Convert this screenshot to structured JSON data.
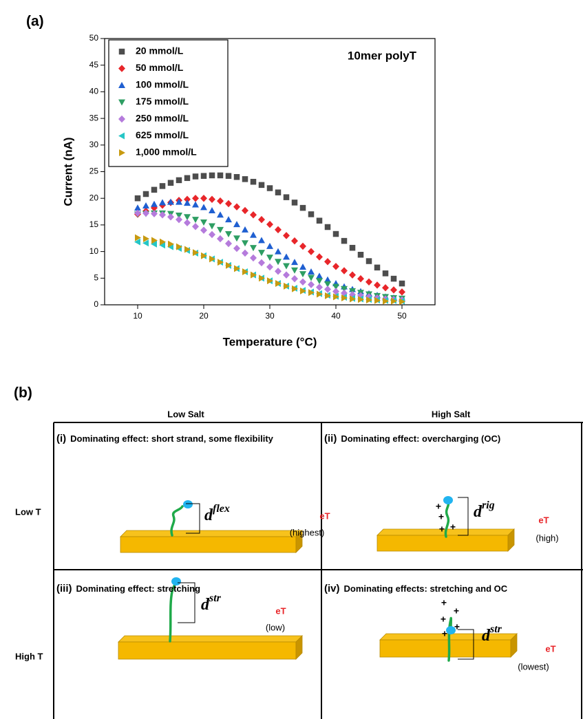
{
  "panel_a_label": "(a)",
  "chart_data": {
    "type": "scatter",
    "annotation": "10mer polyT",
    "x_label": "Temperature (°C)",
    "y_label": "Current (nA)",
    "xlim": [
      5,
      55
    ],
    "xticks": [
      10,
      20,
      30,
      40,
      50
    ],
    "ylim": [
      0,
      50
    ],
    "yticks": [
      0,
      5,
      10,
      15,
      20,
      25,
      30,
      35,
      40,
      45,
      50
    ],
    "legend": "top-left",
    "x": [
      10,
      11.25,
      12.5,
      13.75,
      15,
      16.25,
      17.5,
      18.75,
      20,
      21.25,
      22.5,
      23.75,
      25,
      26.25,
      27.5,
      28.75,
      30,
      31.25,
      32.5,
      33.75,
      35,
      36.25,
      37.5,
      38.75,
      40,
      41.25,
      42.5,
      43.75,
      45,
      46.25,
      47.5,
      48.75,
      50
    ],
    "series": [
      {
        "name": "20 mmol/L",
        "color": "#4d4d4d",
        "marker": "square",
        "values": [
          20.0,
          20.8,
          21.6,
          22.3,
          22.9,
          23.4,
          23.8,
          24.1,
          24.2,
          24.3,
          24.3,
          24.2,
          24.0,
          23.6,
          23.1,
          22.5,
          21.9,
          21.1,
          20.2,
          19.2,
          18.2,
          17.0,
          15.8,
          14.6,
          13.3,
          12.0,
          10.7,
          9.4,
          8.2,
          7.0,
          5.9,
          4.9,
          4.0
        ]
      },
      {
        "name": "50 mmol/L",
        "color": "#e8262a",
        "marker": "diamond",
        "values": [
          17.0,
          17.6,
          18.2,
          18.7,
          19.2,
          19.6,
          19.8,
          20.0,
          20.0,
          19.8,
          19.5,
          19.0,
          18.4,
          17.7,
          16.9,
          16.0,
          15.1,
          14.1,
          13.0,
          12.0,
          11.0,
          10.0,
          9.0,
          8.1,
          7.2,
          6.4,
          5.6,
          4.9,
          4.3,
          3.7,
          3.2,
          2.8,
          2.4
        ]
      },
      {
        "name": "100 mmol/L",
        "color": "#1f5fd1",
        "marker": "triangle-up",
        "values": [
          18.2,
          18.6,
          18.9,
          19.2,
          19.3,
          19.3,
          19.1,
          18.8,
          18.3,
          17.7,
          16.9,
          16.0,
          15.1,
          14.1,
          13.1,
          12.1,
          11.0,
          10.0,
          9.0,
          8.0,
          7.1,
          6.2,
          5.4,
          4.7,
          4.0,
          3.4,
          2.9,
          2.5,
          2.1,
          1.8,
          1.5,
          1.3,
          1.1
        ]
      },
      {
        "name": "175 mmol/L",
        "color": "#2e9e63",
        "marker": "triangle-down",
        "values": [
          17.0,
          17.1,
          17.2,
          17.2,
          17.1,
          16.8,
          16.5,
          16.0,
          15.5,
          14.8,
          14.1,
          13.3,
          12.5,
          11.6,
          10.7,
          9.8,
          8.9,
          8.1,
          7.3,
          6.5,
          5.8,
          5.1,
          4.5,
          3.9,
          3.4,
          3.0,
          2.6,
          2.3,
          2.0,
          1.7,
          1.5,
          1.3,
          1.2
        ]
      },
      {
        "name": "250 mmol/L",
        "color": "#b57bdc",
        "marker": "diamond",
        "values": [
          17.2,
          17.2,
          17.1,
          16.9,
          16.5,
          16.0,
          15.4,
          14.7,
          14.0,
          13.2,
          12.4,
          11.5,
          10.6,
          9.7,
          8.8,
          7.9,
          7.1,
          6.3,
          5.6,
          4.9,
          4.3,
          3.8,
          3.3,
          2.9,
          2.5,
          2.2,
          1.9,
          1.7,
          1.5,
          1.3,
          1.1,
          1.0,
          0.9
        ]
      },
      {
        "name": "625 mmol/L",
        "color": "#26c6c6",
        "marker": "triangle-left",
        "values": [
          11.8,
          11.6,
          11.4,
          11.2,
          10.9,
          10.6,
          10.2,
          9.7,
          9.2,
          8.6,
          8.0,
          7.4,
          6.8,
          6.2,
          5.6,
          5.0,
          4.5,
          4.0,
          3.5,
          3.1,
          2.7,
          2.4,
          2.1,
          1.8,
          1.6,
          1.4,
          1.2,
          1.1,
          1.0,
          0.9,
          0.8,
          0.8,
          0.7
        ]
      },
      {
        "name": "1,000 mmol/L",
        "color": "#c89a10",
        "marker": "triangle-right",
        "values": [
          12.6,
          12.4,
          12.1,
          11.8,
          11.4,
          10.9,
          10.4,
          9.8,
          9.2,
          8.6,
          8.0,
          7.4,
          6.8,
          6.2,
          5.6,
          5.0,
          4.5,
          4.0,
          3.5,
          3.0,
          2.6,
          2.3,
          2.0,
          1.7,
          1.5,
          1.3,
          1.1,
          1.0,
          0.9,
          0.8,
          0.7,
          0.7,
          0.6
        ]
      }
    ]
  },
  "panel_b": {
    "label": "(b)",
    "columns": [
      "Low Salt",
      "High Salt"
    ],
    "rows": [
      "Low T",
      "High T"
    ],
    "cells": [
      {
        "label": "(i)",
        "title": "Dominating effect: short strand, some flexibility",
        "distance_symbol": "d",
        "distance_superscript": "flex",
        "eT": "eT",
        "rate": "(highest)"
      },
      {
        "label": "(ii)",
        "title": "Dominating effect: overcharging (OC)",
        "distance_symbol": "d",
        "distance_superscript": "rig",
        "eT": "eT",
        "rate": "(high)"
      },
      {
        "label": "(iii)",
        "title": "Dominating effect: stretching",
        "distance_symbol": "d",
        "distance_superscript": "str",
        "eT": "eT",
        "rate": "(low)"
      },
      {
        "label": "(iv)",
        "title": "Dominating effects: stretching and OC",
        "distance_symbol": "d",
        "distance_superscript": "str",
        "eT": "eT",
        "rate": "(lowest)"
      }
    ]
  }
}
